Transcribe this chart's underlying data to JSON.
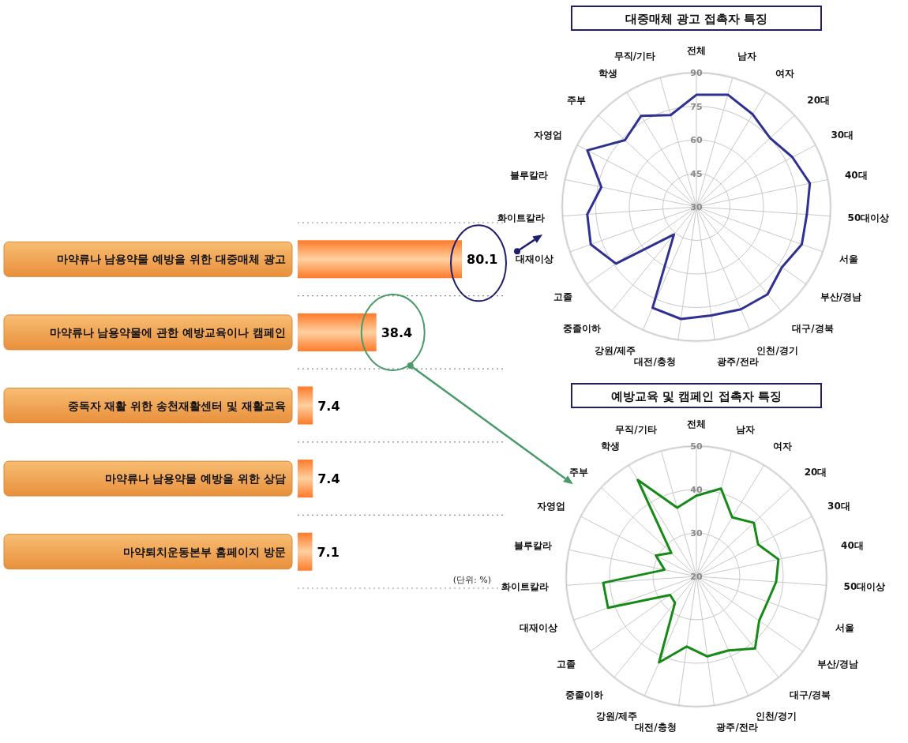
{
  "chart_data": [
    {
      "type": "bar",
      "orientation": "horizontal",
      "categories": [
        "마약류나 남용약물 예방을 위한 대중매체 광고",
        "마약류나 남용약물에 관한 예방교육이나 캠페인",
        "중독자 재활 위한 송천재활센터 및 재활교육",
        "마약류나 남용약물 예방을 위한 상담",
        "마약퇴치운동본부 홈페이지 방문"
      ],
      "values": [
        80.1,
        38.4,
        7.4,
        7.4,
        7.1
      ],
      "color": "#ff7a2a",
      "data_labels": true,
      "grid": true,
      "annotations": [
        "(단위: %)"
      ]
    },
    {
      "type": "radar",
      "title": "대중매체 광고 접촉자 특징",
      "categories": [
        "전체",
        "남자",
        "여자",
        "20대",
        "30대",
        "40대",
        "50대이상",
        "서울",
        "부산/경남",
        "대구/경북",
        "인천/경기",
        "광주/전라",
        "대전/충청",
        "강원/제주",
        "중졸이하",
        "고졸",
        "대재이상",
        "화이트칼라",
        "블루칼라",
        "자영업",
        "주부",
        "학생",
        "무직/기타"
      ],
      "ylim": [
        30,
        90
      ],
      "yticks": [
        30,
        45,
        60,
        75,
        90
      ],
      "grid": true,
      "series": [
        {
          "color": "#2e3192",
          "values": [
            80.1,
            82.1,
            78.4,
            75.1,
            78.3,
            81.8,
            79.5,
            80.0,
            76.8,
            80.4,
            79.9,
            79.0,
            80.6,
            79.2,
            45.9,
            74.0,
            80.1,
            78.9,
            73.4,
            84.9,
            73.7,
            77.6,
            72.6
          ]
        }
      ]
    },
    {
      "type": "radar",
      "title": "예방교육 및 캠페인 접촉자 특징",
      "categories": [
        "전체",
        "남자",
        "여자",
        "20대",
        "30대",
        "40대",
        "50대이상",
        "서울",
        "부산/경남",
        "대구/경북",
        "인천/경기",
        "광주/전라",
        "대전/충청",
        "강원/제주",
        "중졸이하",
        "고졸",
        "대재이상",
        "화이트칼라",
        "블루칼라",
        "자영업",
        "주부",
        "학생",
        "무직/기타"
      ],
      "ylim": [
        20,
        50
      ],
      "yticks": [
        20,
        30,
        40,
        50
      ],
      "grid": true,
      "series": [
        {
          "color": "#168a16",
          "values": [
            38.6,
            41.0,
            35.9,
            38.1,
            36.0,
            39.3,
            38.4,
            37.4,
            37.7,
            41.4,
            38.6,
            38.6,
            36.3,
            41.6,
            27.8,
            27.4,
            41.6,
            41.5,
            27.5,
            30.5,
            27.9,
            46.0,
            36.4
          ]
        }
      ]
    }
  ]
}
